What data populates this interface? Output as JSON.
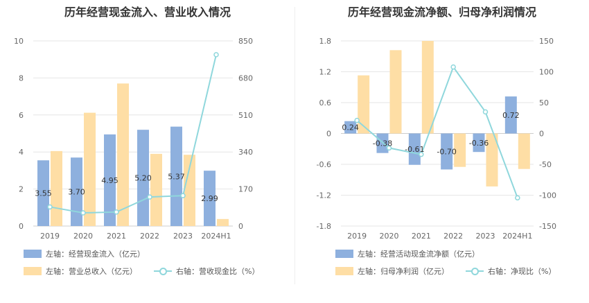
{
  "colors": {
    "blue": "#8eb0de",
    "orange": "#fedea5",
    "line": "#8fd7dc",
    "grid": "#e6e6e6"
  },
  "chart_data": [
    {
      "type": "bar",
      "title": "历年经营现金流入、营业收入情况",
      "categories": [
        "2019",
        "2020",
        "2021",
        "2022",
        "2023",
        "2024H1"
      ],
      "y_left_ticks": [
        "0",
        "2",
        "4",
        "6",
        "8",
        "10"
      ],
      "y_right_ticks": [
        "0",
        "170",
        "340",
        "510",
        "680",
        "850"
      ],
      "ylim_left": [
        0,
        10
      ],
      "ylim_right": [
        0,
        850
      ],
      "series": [
        {
          "name": "左轴：经营现金流入（亿元）",
          "axis": "left",
          "kind": "bar",
          "values": [
            3.55,
            3.7,
            4.95,
            5.2,
            5.37,
            2.99
          ],
          "labels": [
            "3.55",
            "3.70",
            "4.95",
            "5.20",
            "5.37",
            "2.99"
          ]
        },
        {
          "name": "左轴：营业总收入（亿元）",
          "axis": "left",
          "kind": "bar",
          "values": [
            4.05,
            6.12,
            7.7,
            3.9,
            3.85,
            0.38
          ]
        },
        {
          "name": "右轴：营收现金比（%）",
          "axis": "right",
          "kind": "line",
          "values": [
            87.7,
            60.5,
            64.3,
            133.3,
            139.5,
            786.8
          ]
        }
      ]
    },
    {
      "type": "bar",
      "title": "历年经营现金流净额、归母净利润情况",
      "categories": [
        "2019",
        "2020",
        "2021",
        "2022",
        "2023",
        "2024H1"
      ],
      "y_left_ticks": [
        "-1.8",
        "-1.2",
        "-0.6",
        "0",
        "0.6",
        "1.2",
        "1.8"
      ],
      "y_right_ticks": [
        "-150",
        "-100",
        "-50",
        "0",
        "50",
        "100",
        "150"
      ],
      "ylim_left": [
        -1.8,
        1.8
      ],
      "ylim_right": [
        -150,
        150
      ],
      "series": [
        {
          "name": "左轴：经营活动现金流净额（亿元）",
          "axis": "left",
          "kind": "bar",
          "values": [
            0.24,
            -0.38,
            -0.61,
            -0.7,
            -0.36,
            0.72
          ],
          "labels": [
            "0.24",
            "-0.38",
            "-0.61",
            "-0.70",
            "-0.36",
            "0.72"
          ]
        },
        {
          "name": "左轴：归母净利润（亿元）",
          "axis": "left",
          "kind": "bar",
          "values": [
            1.13,
            1.62,
            1.8,
            -0.65,
            -1.03,
            -0.69
          ]
        },
        {
          "name": "右轴：净现比（%）",
          "axis": "right",
          "kind": "line",
          "values": [
            21.2,
            -23.5,
            -33.9,
            107.7,
            35.0,
            -104.3
          ]
        }
      ]
    }
  ]
}
